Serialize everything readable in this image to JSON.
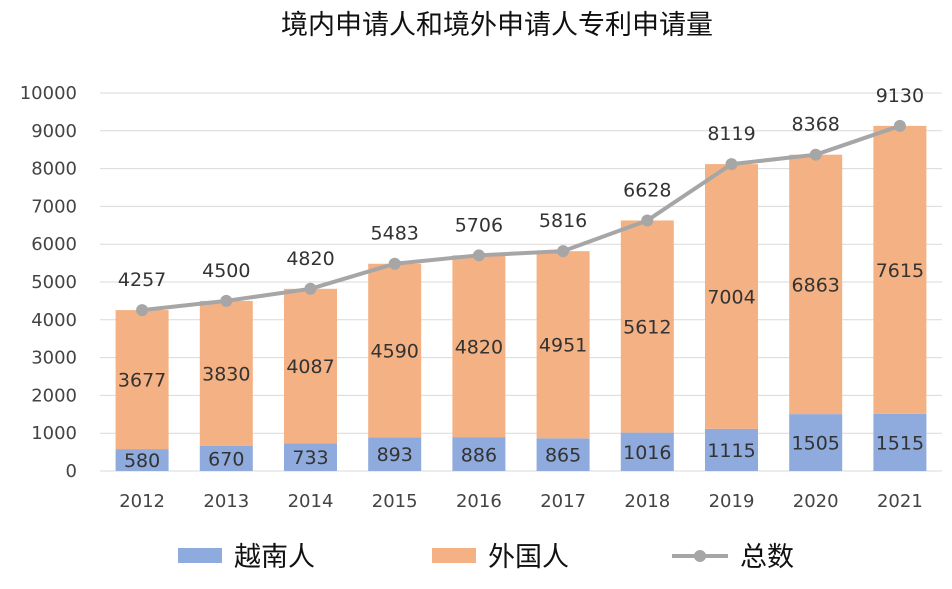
{
  "chart_data": {
    "type": "bar",
    "stacked": true,
    "title": "境内申请人和境外申请人专利申请量",
    "categories": [
      "2012",
      "2013",
      "2014",
      "2015",
      "2016",
      "2017",
      "2018",
      "2019",
      "2020",
      "2021"
    ],
    "ylim": [
      0,
      10000
    ],
    "yticks": [
      0,
      1000,
      2000,
      3000,
      4000,
      5000,
      6000,
      7000,
      8000,
      9000,
      10000
    ],
    "grid": true,
    "legend_position": "bottom",
    "series": [
      {
        "name": "越南人",
        "type": "bar",
        "color": "#8faadc",
        "values": [
          580,
          670,
          733,
          893,
          886,
          865,
          1016,
          1115,
          1505,
          1515
        ]
      },
      {
        "name": "外国人",
        "type": "bar",
        "color": "#f4b183",
        "values": [
          3677,
          3830,
          4087,
          4590,
          4820,
          4951,
          5612,
          7004,
          6863,
          7615
        ]
      },
      {
        "name": "总数",
        "type": "line",
        "color": "#a6a6a6",
        "values": [
          4257,
          4500,
          4820,
          5483,
          5706,
          5816,
          6628,
          8119,
          8368,
          9130
        ]
      }
    ]
  }
}
